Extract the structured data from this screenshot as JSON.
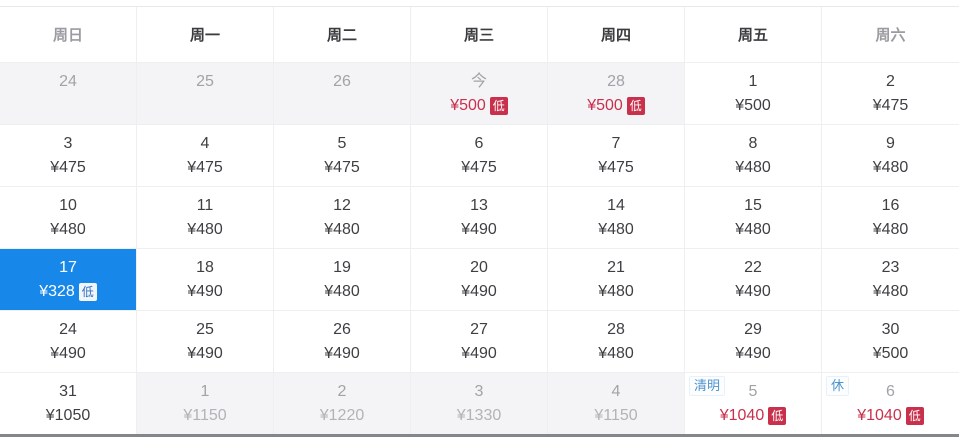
{
  "calendar": {
    "currency": "¥",
    "low_badge_label": "低",
    "weekday_header": [
      {
        "label": "周日",
        "muted": true
      },
      {
        "label": "周一",
        "muted": false
      },
      {
        "label": "周二",
        "muted": false
      },
      {
        "label": "周三",
        "muted": false
      },
      {
        "label": "周四",
        "muted": false
      },
      {
        "label": "周五",
        "muted": false
      },
      {
        "label": "周六",
        "muted": true
      }
    ],
    "weeks": [
      [
        {
          "day": "24",
          "day_muted": true,
          "bg": "gray",
          "price": "",
          "price_style": "dark",
          "low": false,
          "tag": "",
          "selected": false,
          "interactable": false
        },
        {
          "day": "25",
          "day_muted": true,
          "bg": "gray",
          "price": "",
          "price_style": "dark",
          "low": false,
          "tag": "",
          "selected": false,
          "interactable": false
        },
        {
          "day": "26",
          "day_muted": true,
          "bg": "gray",
          "price": "",
          "price_style": "dark",
          "low": false,
          "tag": "",
          "selected": false,
          "interactable": false
        },
        {
          "day": "今",
          "day_muted": true,
          "bg": "gray",
          "price": "¥500",
          "price_style": "red",
          "low": true,
          "tag": "",
          "selected": false,
          "interactable": true
        },
        {
          "day": "28",
          "day_muted": true,
          "bg": "gray",
          "price": "¥500",
          "price_style": "red",
          "low": true,
          "tag": "",
          "selected": false,
          "interactable": true
        },
        {
          "day": "1",
          "day_muted": false,
          "bg": "white",
          "price": "¥500",
          "price_style": "dark",
          "low": false,
          "tag": "",
          "selected": false,
          "interactable": true
        },
        {
          "day": "2",
          "day_muted": false,
          "bg": "white",
          "price": "¥475",
          "price_style": "dark",
          "low": false,
          "tag": "",
          "selected": false,
          "interactable": true
        }
      ],
      [
        {
          "day": "3",
          "day_muted": false,
          "bg": "white",
          "price": "¥475",
          "price_style": "dark",
          "low": false,
          "tag": "",
          "selected": false,
          "interactable": true
        },
        {
          "day": "4",
          "day_muted": false,
          "bg": "white",
          "price": "¥475",
          "price_style": "dark",
          "low": false,
          "tag": "",
          "selected": false,
          "interactable": true
        },
        {
          "day": "5",
          "day_muted": false,
          "bg": "white",
          "price": "¥475",
          "price_style": "dark",
          "low": false,
          "tag": "",
          "selected": false,
          "interactable": true
        },
        {
          "day": "6",
          "day_muted": false,
          "bg": "white",
          "price": "¥475",
          "price_style": "dark",
          "low": false,
          "tag": "",
          "selected": false,
          "interactable": true
        },
        {
          "day": "7",
          "day_muted": false,
          "bg": "white",
          "price": "¥475",
          "price_style": "dark",
          "low": false,
          "tag": "",
          "selected": false,
          "interactable": true
        },
        {
          "day": "8",
          "day_muted": false,
          "bg": "white",
          "price": "¥480",
          "price_style": "dark",
          "low": false,
          "tag": "",
          "selected": false,
          "interactable": true
        },
        {
          "day": "9",
          "day_muted": false,
          "bg": "white",
          "price": "¥480",
          "price_style": "dark",
          "low": false,
          "tag": "",
          "selected": false,
          "interactable": true
        }
      ],
      [
        {
          "day": "10",
          "day_muted": false,
          "bg": "white",
          "price": "¥480",
          "price_style": "dark",
          "low": false,
          "tag": "",
          "selected": false,
          "interactable": true
        },
        {
          "day": "11",
          "day_muted": false,
          "bg": "white",
          "price": "¥480",
          "price_style": "dark",
          "low": false,
          "tag": "",
          "selected": false,
          "interactable": true
        },
        {
          "day": "12",
          "day_muted": false,
          "bg": "white",
          "price": "¥480",
          "price_style": "dark",
          "low": false,
          "tag": "",
          "selected": false,
          "interactable": true
        },
        {
          "day": "13",
          "day_muted": false,
          "bg": "white",
          "price": "¥490",
          "price_style": "dark",
          "low": false,
          "tag": "",
          "selected": false,
          "interactable": true
        },
        {
          "day": "14",
          "day_muted": false,
          "bg": "white",
          "price": "¥480",
          "price_style": "dark",
          "low": false,
          "tag": "",
          "selected": false,
          "interactable": true
        },
        {
          "day": "15",
          "day_muted": false,
          "bg": "white",
          "price": "¥480",
          "price_style": "dark",
          "low": false,
          "tag": "",
          "selected": false,
          "interactable": true
        },
        {
          "day": "16",
          "day_muted": false,
          "bg": "white",
          "price": "¥480",
          "price_style": "dark",
          "low": false,
          "tag": "",
          "selected": false,
          "interactable": true
        }
      ],
      [
        {
          "day": "17",
          "day_muted": false,
          "bg": "blue",
          "price": "¥328",
          "price_style": "white",
          "low": true,
          "tag": "",
          "selected": true,
          "interactable": true
        },
        {
          "day": "18",
          "day_muted": false,
          "bg": "white",
          "price": "¥490",
          "price_style": "dark",
          "low": false,
          "tag": "",
          "selected": false,
          "interactable": true
        },
        {
          "day": "19",
          "day_muted": false,
          "bg": "white",
          "price": "¥480",
          "price_style": "dark",
          "low": false,
          "tag": "",
          "selected": false,
          "interactable": true
        },
        {
          "day": "20",
          "day_muted": false,
          "bg": "white",
          "price": "¥490",
          "price_style": "dark",
          "low": false,
          "tag": "",
          "selected": false,
          "interactable": true
        },
        {
          "day": "21",
          "day_muted": false,
          "bg": "white",
          "price": "¥480",
          "price_style": "dark",
          "low": false,
          "tag": "",
          "selected": false,
          "interactable": true
        },
        {
          "day": "22",
          "day_muted": false,
          "bg": "white",
          "price": "¥490",
          "price_style": "dark",
          "low": false,
          "tag": "",
          "selected": false,
          "interactable": true
        },
        {
          "day": "23",
          "day_muted": false,
          "bg": "white",
          "price": "¥480",
          "price_style": "dark",
          "low": false,
          "tag": "",
          "selected": false,
          "interactable": true
        }
      ],
      [
        {
          "day": "24",
          "day_muted": false,
          "bg": "white",
          "price": "¥490",
          "price_style": "dark",
          "low": false,
          "tag": "",
          "selected": false,
          "interactable": true
        },
        {
          "day": "25",
          "day_muted": false,
          "bg": "white",
          "price": "¥490",
          "price_style": "dark",
          "low": false,
          "tag": "",
          "selected": false,
          "interactable": true
        },
        {
          "day": "26",
          "day_muted": false,
          "bg": "white",
          "price": "¥490",
          "price_style": "dark",
          "low": false,
          "tag": "",
          "selected": false,
          "interactable": true
        },
        {
          "day": "27",
          "day_muted": false,
          "bg": "white",
          "price": "¥490",
          "price_style": "dark",
          "low": false,
          "tag": "",
          "selected": false,
          "interactable": true
        },
        {
          "day": "28",
          "day_muted": false,
          "bg": "white",
          "price": "¥480",
          "price_style": "dark",
          "low": false,
          "tag": "",
          "selected": false,
          "interactable": true
        },
        {
          "day": "29",
          "day_muted": false,
          "bg": "white",
          "price": "¥490",
          "price_style": "dark",
          "low": false,
          "tag": "",
          "selected": false,
          "interactable": true
        },
        {
          "day": "30",
          "day_muted": false,
          "bg": "white",
          "price": "¥500",
          "price_style": "dark",
          "low": false,
          "tag": "",
          "selected": false,
          "interactable": true
        }
      ],
      [
        {
          "day": "31",
          "day_muted": false,
          "bg": "white",
          "price": "¥1050",
          "price_style": "dark",
          "low": false,
          "tag": "",
          "selected": false,
          "interactable": true
        },
        {
          "day": "1",
          "day_muted": true,
          "bg": "gray",
          "price": "¥1150",
          "price_style": "muted",
          "low": false,
          "tag": "",
          "selected": false,
          "interactable": false
        },
        {
          "day": "2",
          "day_muted": true,
          "bg": "gray",
          "price": "¥1220",
          "price_style": "muted",
          "low": false,
          "tag": "",
          "selected": false,
          "interactable": false
        },
        {
          "day": "3",
          "day_muted": true,
          "bg": "gray",
          "price": "¥1330",
          "price_style": "muted",
          "low": false,
          "tag": "",
          "selected": false,
          "interactable": false
        },
        {
          "day": "4",
          "day_muted": true,
          "bg": "gray",
          "price": "¥1150",
          "price_style": "muted",
          "low": false,
          "tag": "",
          "selected": false,
          "interactable": false
        },
        {
          "day": "5",
          "day_muted": true,
          "bg": "white",
          "price": "¥1040",
          "price_style": "red",
          "low": true,
          "tag": "清明",
          "selected": false,
          "interactable": true
        },
        {
          "day": "6",
          "day_muted": true,
          "bg": "white",
          "price": "¥1040",
          "price_style": "red",
          "low": true,
          "tag": "休",
          "selected": false,
          "interactable": true
        }
      ]
    ]
  },
  "colors": {
    "selected_blue": "#1788e9",
    "price_red": "#c9304c",
    "low_badge_bg": "#c9304c",
    "holiday_tag_blue": "#4e94cc",
    "muted_cell_bg": "#f4f4f6",
    "grid_border": "#efeff2",
    "dark_text": "#3f3f43",
    "muted_text": "#a2a2a8",
    "bottom_line": "#83878c"
  }
}
